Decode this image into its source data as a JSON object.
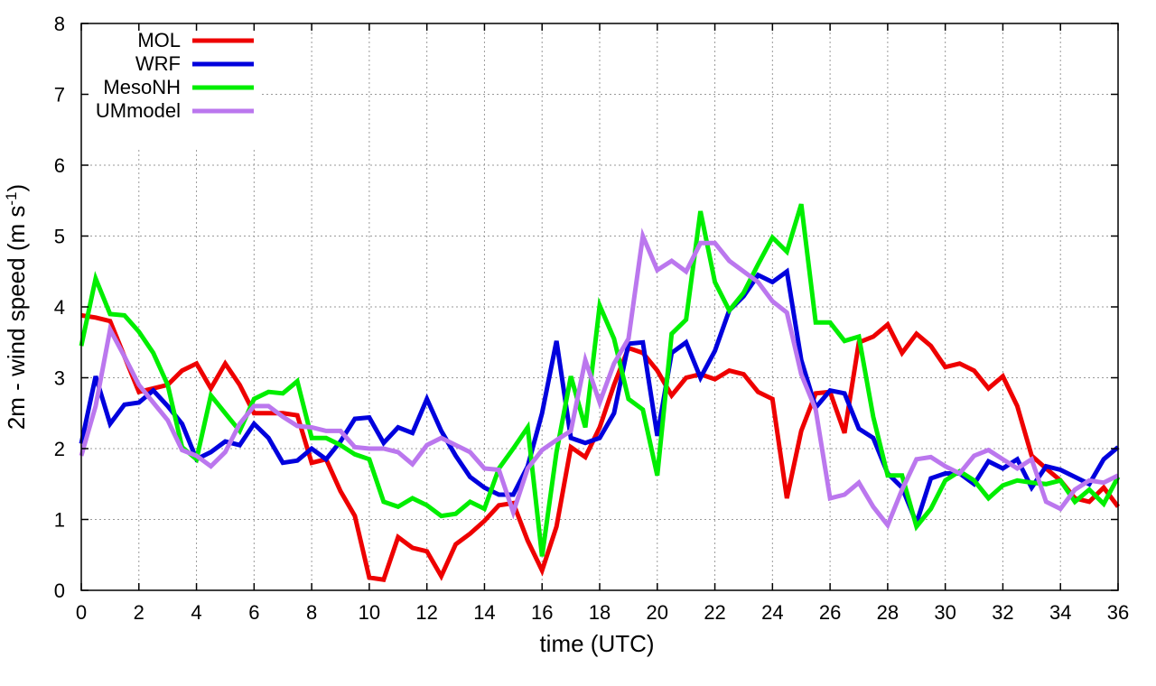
{
  "chart_data": {
    "type": "line",
    "title": "",
    "xlabel": "time (UTC)",
    "ylabel_main": "2m - wind speed  (m s",
    "ylabel_sup": "-1",
    "ylabel_close": ")",
    "xlim": [
      0,
      36
    ],
    "ylim": [
      0,
      8
    ],
    "x_ticks": [
      "0",
      "2",
      "4",
      "6",
      "8",
      "10",
      "12",
      "14",
      "16",
      "18",
      "20",
      "22",
      "24",
      "26",
      "28",
      "30",
      "32",
      "34",
      "36"
    ],
    "y_ticks": [
      "0",
      "1",
      "2",
      "3",
      "4",
      "5",
      "6",
      "7",
      "8"
    ],
    "grid": true,
    "legend_position": "top-left",
    "x": [
      0,
      0.5,
      1,
      1.5,
      2,
      2.5,
      3,
      3.5,
      4,
      4.5,
      5,
      5.5,
      6,
      6.5,
      7,
      7.5,
      8,
      8.5,
      9,
      9.5,
      10,
      10.5,
      11,
      11.5,
      12,
      12.5,
      13,
      13.5,
      14,
      14.5,
      15,
      15.5,
      16,
      16.5,
      17,
      17.5,
      18,
      18.5,
      19,
      19.5,
      20,
      20.5,
      21,
      21.5,
      22,
      22.5,
      23,
      23.5,
      24,
      24.5,
      25,
      25.5,
      26,
      26.5,
      27,
      27.5,
      28,
      28.5,
      29,
      29.5,
      30,
      30.5,
      31,
      31.5,
      32,
      32.5,
      33,
      33.5,
      34,
      34.5,
      35,
      35.5,
      36
    ],
    "series": [
      {
        "name": "MOL",
        "color": "#ee0000",
        "values": [
          3.88,
          3.85,
          3.8,
          3.3,
          2.8,
          2.85,
          2.9,
          3.1,
          3.2,
          2.85,
          3.2,
          2.9,
          2.5,
          2.5,
          2.5,
          2.47,
          1.8,
          1.85,
          1.4,
          1.05,
          0.18,
          0.15,
          0.75,
          0.6,
          0.55,
          0.2,
          0.65,
          0.8,
          0.98,
          1.2,
          1.23,
          0.7,
          0.28,
          0.9,
          2.02,
          1.88,
          2.3,
          2.9,
          3.42,
          3.35,
          3.1,
          2.75,
          3.0,
          3.05,
          2.98,
          3.1,
          3.05,
          2.8,
          2.7,
          1.3,
          2.25,
          2.78,
          2.8,
          2.22,
          3.5,
          3.58,
          3.75,
          3.35,
          3.62,
          3.45,
          3.15,
          3.2,
          3.1,
          2.85,
          3.02,
          2.6,
          1.9,
          1.72,
          1.55,
          1.3,
          1.25,
          1.45,
          1.18
        ]
      },
      {
        "name": "WRF",
        "color": "#0000dd",
        "values": [
          2.07,
          3.02,
          2.35,
          2.62,
          2.65,
          2.82,
          2.6,
          2.35,
          1.85,
          1.95,
          2.1,
          2.05,
          2.35,
          2.15,
          1.8,
          1.83,
          2.0,
          1.85,
          2.1,
          2.42,
          2.44,
          2.08,
          2.3,
          2.22,
          2.7,
          2.25,
          1.9,
          1.6,
          1.45,
          1.35,
          1.35,
          1.75,
          2.5,
          3.52,
          2.15,
          2.08,
          2.15,
          2.5,
          3.48,
          3.5,
          2.18,
          3.35,
          3.5,
          3.0,
          3.38,
          3.95,
          4.15,
          4.45,
          4.35,
          4.5,
          3.25,
          2.58,
          2.82,
          2.78,
          2.28,
          2.15,
          1.65,
          1.45,
          0.95,
          1.58,
          1.65,
          1.65,
          1.5,
          1.82,
          1.72,
          1.85,
          1.45,
          1.75,
          1.7,
          1.6,
          1.5,
          1.85,
          2.02
        ]
      },
      {
        "name": "MesoNH",
        "color": "#00ee00",
        "values": [
          3.45,
          4.4,
          3.9,
          3.88,
          3.65,
          3.35,
          2.9,
          2.02,
          1.85,
          2.75,
          2.5,
          2.25,
          2.7,
          2.8,
          2.78,
          2.95,
          2.15,
          2.15,
          2.05,
          1.92,
          1.85,
          1.25,
          1.18,
          1.3,
          1.2,
          1.05,
          1.08,
          1.25,
          1.15,
          1.72,
          2.0,
          2.3,
          0.48,
          1.95,
          3.02,
          2.3,
          4.02,
          3.55,
          2.7,
          2.55,
          1.62,
          3.62,
          3.82,
          5.35,
          4.35,
          3.95,
          4.2,
          4.6,
          4.98,
          4.78,
          5.45,
          3.78,
          3.78,
          3.52,
          3.58,
          2.45,
          1.62,
          1.62,
          0.9,
          1.15,
          1.55,
          1.68,
          1.55,
          1.3,
          1.48,
          1.55,
          1.52,
          1.5,
          1.55,
          1.25,
          1.42,
          1.22,
          1.6
        ]
      },
      {
        "name": "UMmodel",
        "color": "#bb77ee",
        "values": [
          1.9,
          2.6,
          3.68,
          3.3,
          2.9,
          2.65,
          2.4,
          1.98,
          1.9,
          1.75,
          1.95,
          2.35,
          2.6,
          2.6,
          2.45,
          2.32,
          2.3,
          2.25,
          2.25,
          2.02,
          2.0,
          2.0,
          1.95,
          1.78,
          2.05,
          2.15,
          2.05,
          1.95,
          1.72,
          1.7,
          1.1,
          1.72,
          1.98,
          2.12,
          2.25,
          3.25,
          2.65,
          3.2,
          3.55,
          5.0,
          4.52,
          4.65,
          4.5,
          4.9,
          4.9,
          4.65,
          4.5,
          4.35,
          4.08,
          3.92,
          3.05,
          2.55,
          1.3,
          1.35,
          1.52,
          1.18,
          0.92,
          1.42,
          1.85,
          1.88,
          1.75,
          1.65,
          1.9,
          1.98,
          1.85,
          1.72,
          1.85,
          1.25,
          1.15,
          1.42,
          1.55,
          1.52,
          1.62
        ]
      }
    ]
  }
}
